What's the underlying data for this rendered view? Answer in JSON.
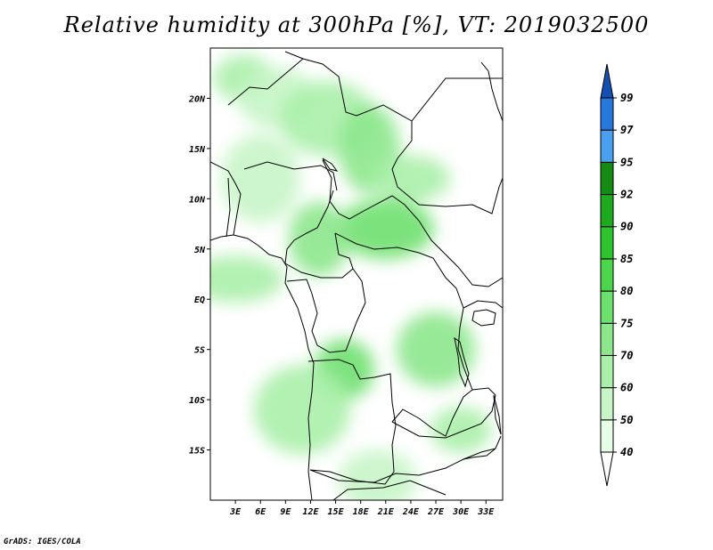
{
  "title": "Relative humidity at 300hPa [%], VT: 2019032500",
  "credit": "GrADS: IGES/COLA",
  "map": {
    "lon_range": [
      0,
      35
    ],
    "lat_range": [
      -20,
      25
    ],
    "lat_ticks": [
      {
        "value": 20,
        "label": "20N"
      },
      {
        "value": 15,
        "label": "15N"
      },
      {
        "value": 10,
        "label": "10N"
      },
      {
        "value": 5,
        "label": "5N"
      },
      {
        "value": 0,
        "label": "EQ"
      },
      {
        "value": -5,
        "label": "5S"
      },
      {
        "value": -10,
        "label": "10S"
      },
      {
        "value": -15,
        "label": "15S"
      }
    ],
    "lon_ticks": [
      {
        "value": 3,
        "label": "3E"
      },
      {
        "value": 6,
        "label": "6E"
      },
      {
        "value": 9,
        "label": "9E"
      },
      {
        "value": 12,
        "label": "12E"
      },
      {
        "value": 15,
        "label": "15E"
      },
      {
        "value": 18,
        "label": "18E"
      },
      {
        "value": 21,
        "label": "21E"
      },
      {
        "value": 24,
        "label": "24E"
      },
      {
        "value": 27,
        "label": "27E"
      },
      {
        "value": 30,
        "label": "30E"
      },
      {
        "value": 33,
        "label": "33E"
      }
    ]
  },
  "colorbar": {
    "levels": [
      "40",
      "50",
      "60",
      "70",
      "75",
      "80",
      "85",
      "90",
      "92",
      "95",
      "97",
      "99"
    ],
    "colors": [
      "#ffffff",
      "#e6fde6",
      "#c8f5c8",
      "#aaefaa",
      "#8ce78c",
      "#6ee06e",
      "#4cd44c",
      "#2ec42e",
      "#1eaa1e",
      "#148c14",
      "#4aa0ee",
      "#2878dc",
      "#1450b4"
    ]
  },
  "humidity_regions": [
    {
      "lon": 4,
      "lat": 22,
      "rh": 60
    },
    {
      "lon": 8,
      "lat": 20,
      "rh": 50
    },
    {
      "lon": 14,
      "lat": 18,
      "rh": 60
    },
    {
      "lon": 19,
      "lat": 15,
      "rh": 70
    },
    {
      "lon": 24,
      "lat": 12,
      "rh": 60
    },
    {
      "lon": 21,
      "lat": 7,
      "rh": 75
    },
    {
      "lon": 13,
      "lat": 6,
      "rh": 70
    },
    {
      "lon": 6,
      "lat": 12,
      "rh": 50
    },
    {
      "lon": 3,
      "lat": 2,
      "rh": 60
    },
    {
      "lon": 16,
      "lat": -7,
      "rh": 75
    },
    {
      "lon": 27,
      "lat": -5,
      "rh": 70
    },
    {
      "lon": 11,
      "lat": -11,
      "rh": 60
    },
    {
      "lon": 30,
      "lat": -13,
      "rh": 60
    },
    {
      "lon": 20,
      "lat": -18,
      "rh": 50
    }
  ]
}
